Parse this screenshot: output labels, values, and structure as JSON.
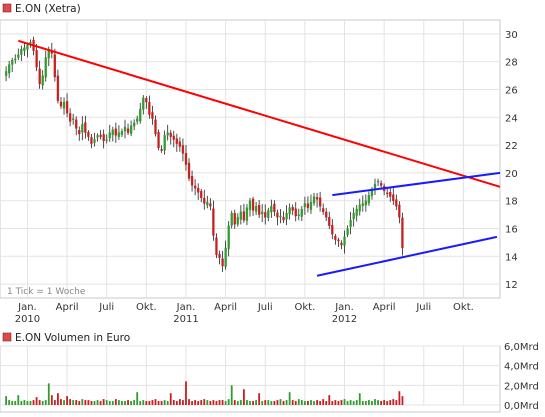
{
  "colors": {
    "up": "#2e9c2e",
    "down": "#c81e1e",
    "trend_down": "#ff0000",
    "channel": "#1a1aff",
    "legend_square": "#d94b4b",
    "grid": "#e3e3e3",
    "frame": "#c8c8c8"
  },
  "chart_data": [
    {
      "type": "candlestick",
      "title": "E.ON (Xetra)",
      "note": "1 Tick = 1 Woche",
      "y_ticks": [
        "12",
        "14",
        "16",
        "18",
        "20",
        "22",
        "24",
        "26",
        "28",
        "30"
      ],
      "ylim": [
        11,
        31
      ],
      "x_ticks": [
        {
          "label": "Jan.",
          "sublabel": "2010",
          "t": 0
        },
        {
          "label": "April",
          "sublabel": "",
          "t": 13
        },
        {
          "label": "Juli",
          "sublabel": "",
          "t": 26
        },
        {
          "label": "Okt.",
          "sublabel": "",
          "t": 39
        },
        {
          "label": "Jan.",
          "sublabel": "2011",
          "t": 52
        },
        {
          "label": "April",
          "sublabel": "",
          "t": 65
        },
        {
          "label": "Juli",
          "sublabel": "",
          "t": 78
        },
        {
          "label": "Okt.",
          "sublabel": "",
          "t": 91
        },
        {
          "label": "Jan.",
          "sublabel": "2012",
          "t": 104
        },
        {
          "label": "April",
          "sublabel": "",
          "t": 117
        },
        {
          "label": "Juli",
          "sublabel": "",
          "t": 130
        },
        {
          "label": "Okt.",
          "sublabel": "",
          "t": 143
        }
      ],
      "xlim": [
        -9,
        155
      ],
      "closes": [
        27.3,
        27.8,
        28.1,
        28.2,
        28.5,
        28.9,
        29.0,
        29.2,
        29.4,
        28.8,
        27.6,
        26.4,
        27.0,
        28.3,
        28.9,
        28.6,
        26.9,
        25.2,
        24.8,
        25.1,
        24.3,
        23.7,
        23.9,
        23.2,
        22.8,
        23.5,
        22.9,
        22.6,
        22.1,
        22.4,
        22.7,
        22.6,
        22.3,
        22.4,
        22.9,
        23.1,
        22.7,
        22.9,
        23.0,
        23.3,
        22.9,
        23.4,
        23.6,
        23.9,
        24.6,
        25.4,
        25.1,
        24.2,
        23.9,
        22.8,
        21.8,
        21.6,
        22.7,
        22.9,
        22.6,
        22.4,
        22.1,
        21.9,
        21.4,
        20.6,
        19.6,
        19.1,
        18.9,
        18.6,
        18.2,
        17.8,
        17.9,
        17.6,
        15.5,
        14.1,
        13.9,
        13.3,
        14.6,
        16.2,
        17.1,
        16.3,
        16.8,
        17.2,
        16.6,
        17.5,
        18.0,
        17.3,
        17.6,
        17.0,
        17.2,
        16.8,
        17.3,
        17.6,
        17.2,
        16.8,
        16.9,
        16.6,
        17.1,
        17.5,
        17.3,
        16.9,
        17.0,
        17.4,
        17.8,
        17.5,
        17.9,
        18.3,
        18.1,
        17.6,
        17.2,
        16.8,
        16.2,
        15.6,
        15.2,
        15.1,
        14.8,
        15.4,
        16.0,
        16.6,
        17.1,
        17.4,
        17.7,
        17.8,
        18.0,
        18.4,
        18.8,
        19.2,
        19.4,
        19.1,
        18.7,
        18.5,
        18.3,
        18.0,
        17.6,
        16.8,
        14.6
      ],
      "t_start": -7,
      "volume": {
        "title": "E.ON Volumen in Euro",
        "y_ticks": [
          "0,0Mrd",
          "2,0Mrd",
          "4,0Mrd",
          "6,0Mrd"
        ],
        "ylim": [
          0,
          6.0
        ],
        "values": [
          0.9,
          0.5,
          0.4,
          0.4,
          1.0,
          0.4,
          0.5,
          0.4,
          0.4,
          0.5,
          0.8,
          0.5,
          0.4,
          0.5,
          2.2,
          1.0,
          0.5,
          1.2,
          0.6,
          0.5,
          0.9,
          0.6,
          0.5,
          0.5,
          0.4,
          0.6,
          0.5,
          0.5,
          0.4,
          0.4,
          0.5,
          0.4,
          0.6,
          0.5,
          0.4,
          0.4,
          0.6,
          0.5,
          0.4,
          0.4,
          0.5,
          0.4,
          0.5,
          1.3,
          0.4,
          0.5,
          0.4,
          0.4,
          0.5,
          0.6,
          0.4,
          0.4,
          0.5,
          0.4,
          1.2,
          0.5,
          0.4,
          0.6,
          0.5,
          2.4,
          0.6,
          0.4,
          0.5,
          0.4,
          0.5,
          0.6,
          0.5,
          0.4,
          0.5,
          0.4,
          0.5,
          0.5,
          0.4,
          0.6,
          2.0,
          0.5,
          0.4,
          0.5,
          1.6,
          0.5,
          0.4,
          0.4,
          0.5,
          1.2,
          0.4,
          0.5,
          0.5,
          0.4,
          0.4,
          0.5,
          0.6,
          0.4,
          0.5,
          1.3,
          0.5,
          0.4,
          0.6,
          0.5,
          0.4,
          0.4,
          0.5,
          0.4,
          0.5,
          0.4,
          0.6,
          0.4,
          1.0,
          0.4,
          0.5,
          0.4,
          0.5,
          0.6,
          0.4,
          0.5,
          0.4,
          0.5,
          1.2,
          0.4,
          0.4,
          0.5,
          0.4,
          0.6,
          0.5,
          0.4,
          0.5,
          0.4,
          0.5,
          0.6,
          0.5,
          1.4,
          0.9
        ]
      },
      "trend_lines": [
        {
          "name": "resistance",
          "color": "#ff0000",
          "t1": -3,
          "y1": 29.5,
          "t2": 155,
          "y2": 19.0
        },
        {
          "name": "channel-upper",
          "color": "#1a1aff",
          "t1": 100,
          "y1": 18.4,
          "t2": 155,
          "y2": 20.0
        },
        {
          "name": "channel-lower",
          "color": "#1a1aff",
          "t1": 95,
          "y1": 12.6,
          "t2": 154,
          "y2": 15.4
        }
      ]
    }
  ]
}
